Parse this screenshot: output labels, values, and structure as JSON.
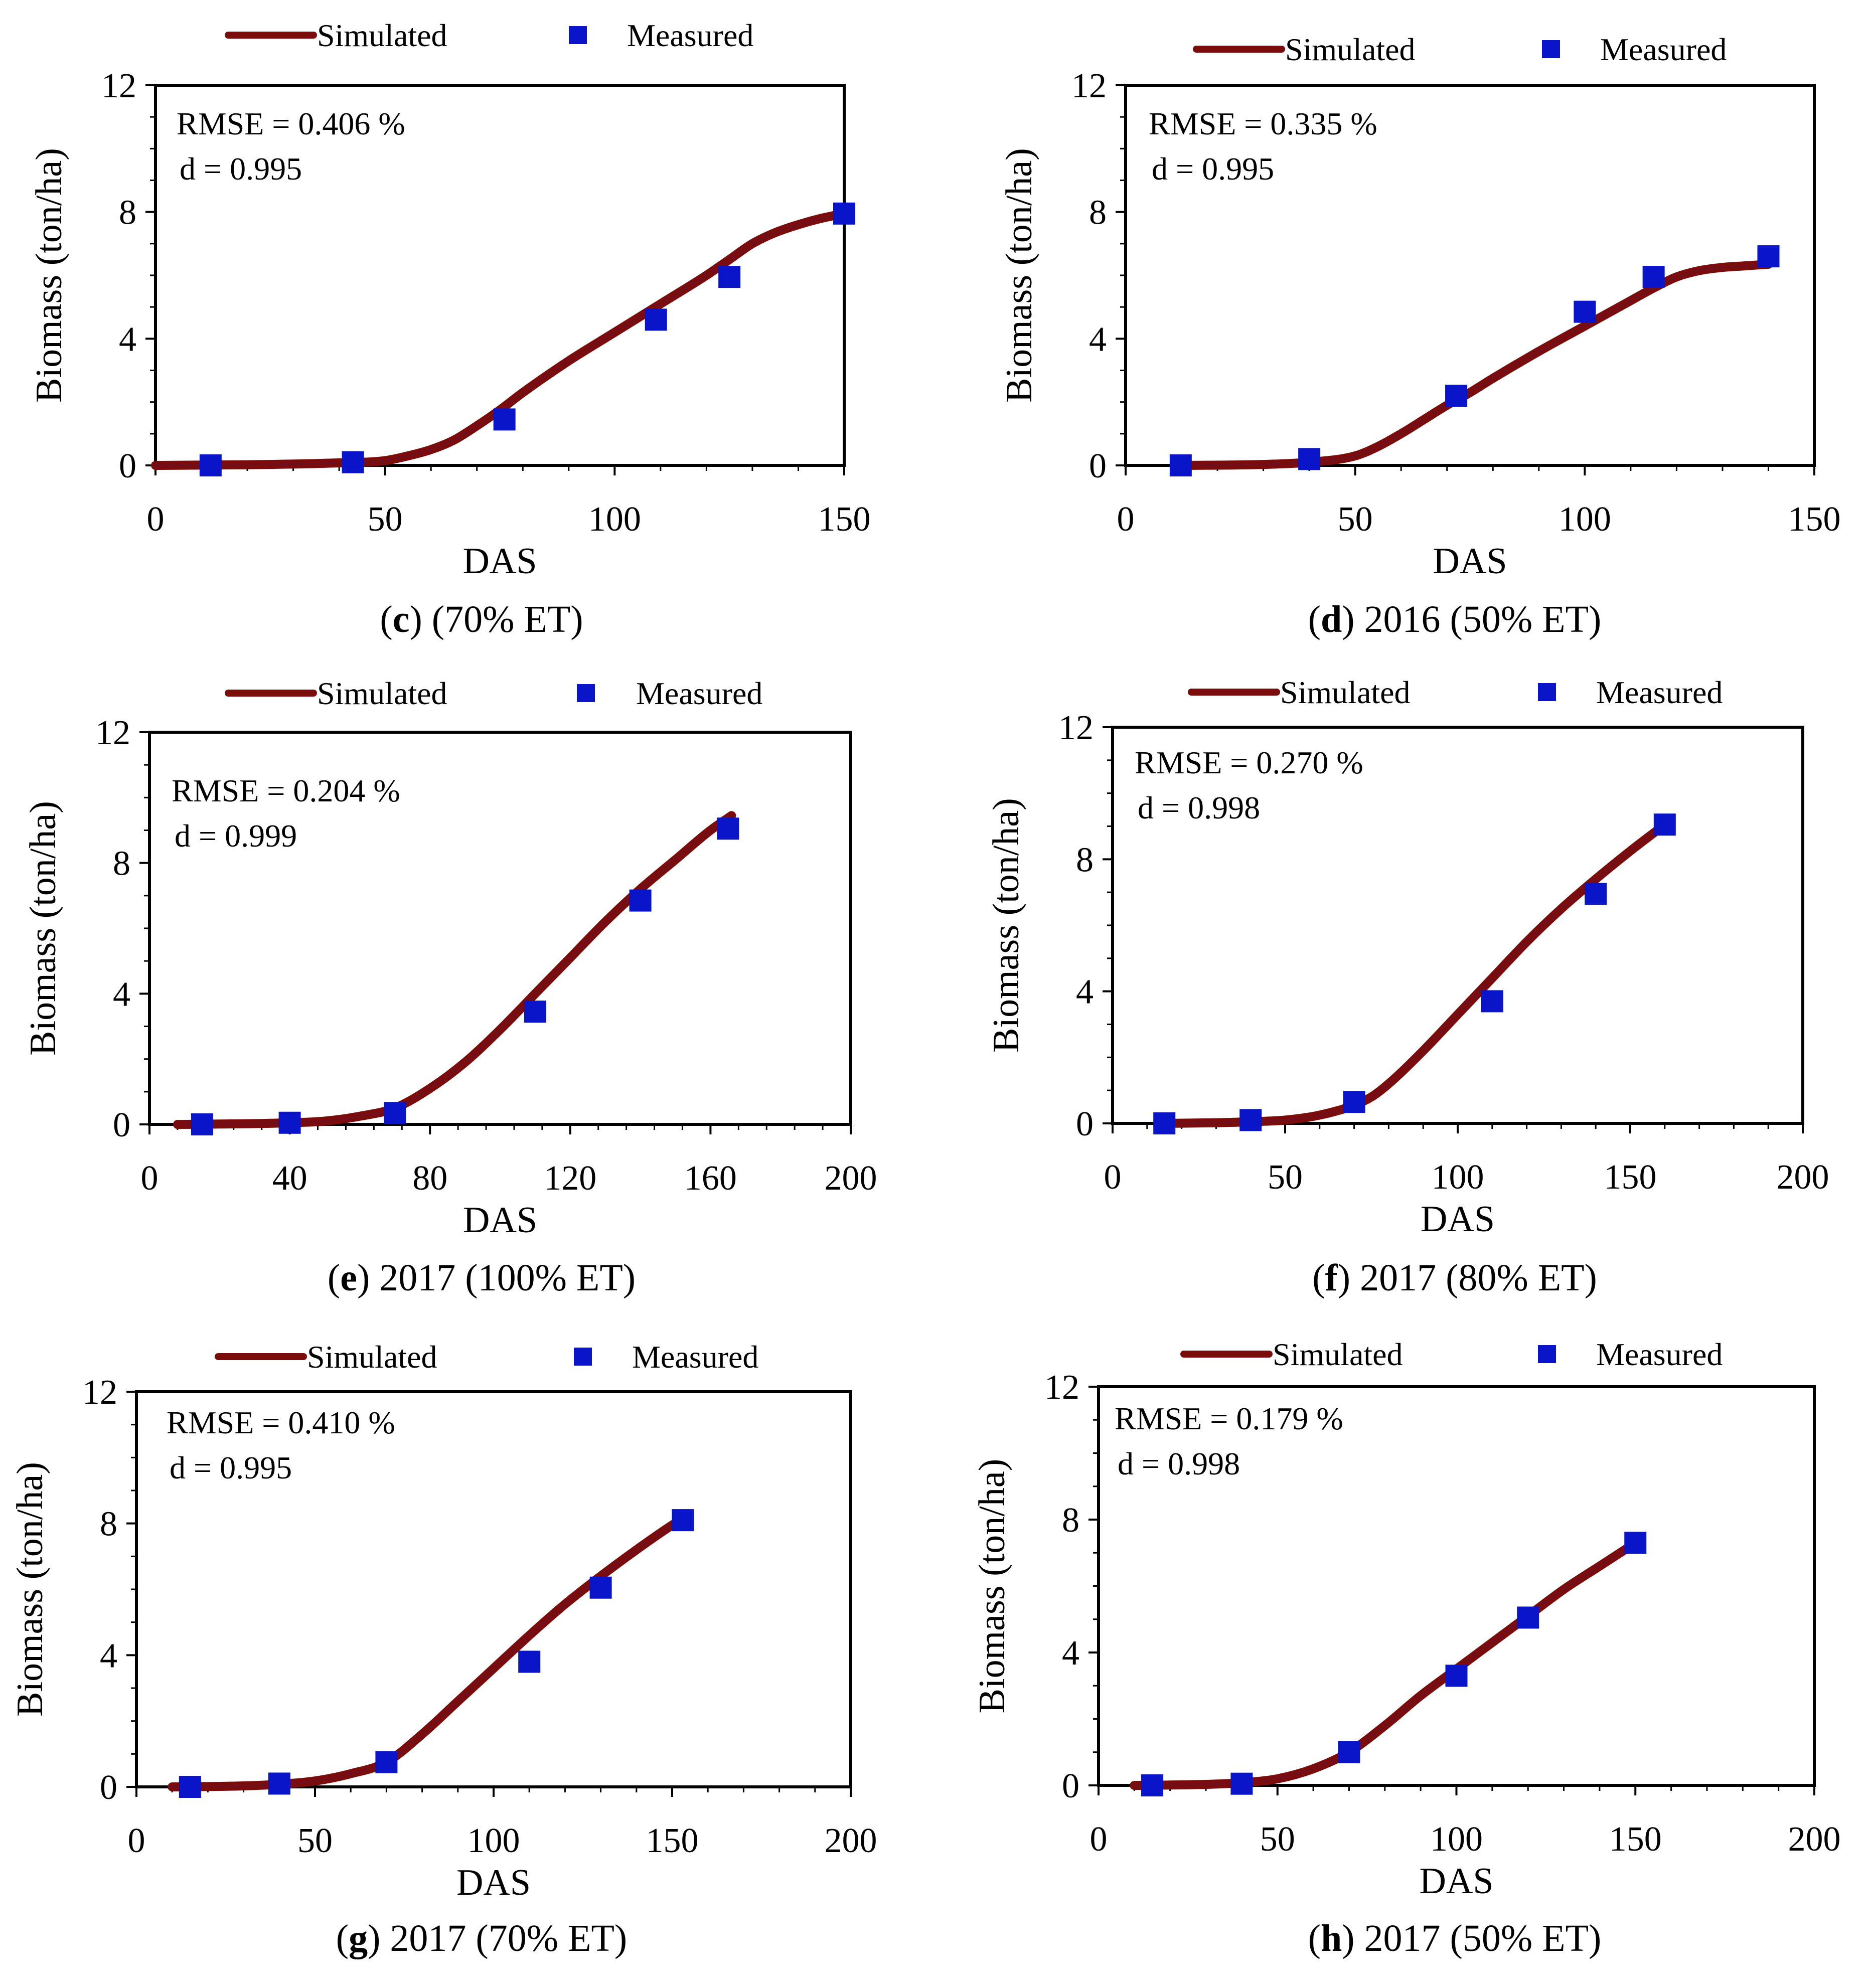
{
  "colors": {
    "simulated": "#7a0c0c",
    "measured": "#0a14c8",
    "axis": "#000000",
    "text": "#000000"
  },
  "chart_data": [
    {
      "type": "line+scatter",
      "panel_letter": "c",
      "caption": " (70% ET)",
      "xlabel": "DAS",
      "ylabel": "Biomass (ton/ha)",
      "xlim": [
        0,
        150
      ],
      "ylim": [
        0,
        12
      ],
      "xticks": [
        0,
        50,
        100,
        150
      ],
      "yticks": [
        0,
        4,
        8,
        12
      ],
      "legend": {
        "simulated": "Simulated",
        "measured": "Measured",
        "placement": "top"
      },
      "stats": [
        "RMSE = 0.406 %",
        "d = 0.995"
      ],
      "simulated": {
        "x": [
          0,
          20,
          40,
          50,
          55,
          60,
          65,
          70,
          75,
          80,
          90,
          100,
          110,
          120,
          125,
          130,
          135,
          140,
          145,
          150
        ],
        "y": [
          0,
          0.02,
          0.08,
          0.15,
          0.3,
          0.5,
          0.8,
          1.25,
          1.75,
          2.3,
          3.3,
          4.2,
          5.1,
          6.0,
          6.5,
          7.0,
          7.35,
          7.6,
          7.8,
          7.95
        ]
      },
      "measured": {
        "x": [
          12,
          43,
          76,
          109,
          125,
          150
        ],
        "y": [
          0.0,
          0.1,
          1.45,
          4.6,
          5.95,
          7.95
        ]
      }
    },
    {
      "type": "line+scatter",
      "panel_letter": "d",
      "caption": " 2016 (50% ET)",
      "xlabel": "DAS",
      "ylabel": "Biomass (ton/ha)",
      "xlim": [
        0,
        150
      ],
      "ylim": [
        0,
        12
      ],
      "xticks": [
        0,
        50,
        100,
        150
      ],
      "yticks": [
        0,
        4,
        8,
        12
      ],
      "legend": {
        "simulated": "Simulated",
        "measured": "Measured",
        "placement": "top"
      },
      "stats": [
        "RMSE = 0.335 %",
        "d = 0.995"
      ],
      "simulated": {
        "x": [
          12,
          30,
          40,
          50,
          55,
          60,
          65,
          70,
          75,
          80,
          90,
          100,
          110,
          115,
          120,
          125,
          130,
          135,
          140
        ],
        "y": [
          0,
          0.03,
          0.1,
          0.3,
          0.6,
          1.0,
          1.45,
          1.9,
          2.3,
          2.75,
          3.6,
          4.4,
          5.2,
          5.6,
          5.95,
          6.15,
          6.25,
          6.3,
          6.35
        ]
      },
      "measured": {
        "x": [
          12,
          40,
          72,
          100,
          115,
          140
        ],
        "y": [
          0.0,
          0.2,
          2.2,
          4.85,
          5.95,
          6.6
        ]
      }
    },
    {
      "type": "line+scatter",
      "panel_letter": "e",
      "caption": " 2017 (100% ET)",
      "xlabel": "DAS",
      "ylabel": "Biomass (ton/ha)",
      "xlim": [
        0,
        200
      ],
      "ylim": [
        0,
        12
      ],
      "xticks": [
        0,
        40,
        80,
        120,
        160,
        200
      ],
      "yticks": [
        0,
        4,
        8,
        12
      ],
      "legend": {
        "simulated": "Simulated",
        "measured": "Measured",
        "placement": "top"
      },
      "stats": [
        "RMSE = 0.204 %",
        "d = 0.999"
      ],
      "simulated": {
        "x": [
          8,
          20,
          40,
          50,
          60,
          70,
          80,
          90,
          100,
          110,
          120,
          130,
          140,
          150,
          160,
          166
        ],
        "y": [
          0,
          0.01,
          0.05,
          0.1,
          0.25,
          0.5,
          1.1,
          1.9,
          2.9,
          4.0,
          5.1,
          6.2,
          7.2,
          8.1,
          9.0,
          9.45
        ]
      },
      "measured": {
        "x": [
          15,
          40,
          70,
          110,
          140,
          165
        ],
        "y": [
          0.0,
          0.05,
          0.35,
          3.45,
          6.85,
          9.05
        ]
      }
    },
    {
      "type": "line+scatter",
      "panel_letter": "f",
      "caption": " 2017 (80% ET)",
      "xlabel": "DAS",
      "ylabel": "Biomass (ton/ha)",
      "xlim": [
        0,
        200
      ],
      "ylim": [
        0,
        12
      ],
      "xticks": [
        0,
        50,
        100,
        150,
        200
      ],
      "yticks": [
        0,
        4,
        8,
        12
      ],
      "legend": {
        "simulated": "Simulated",
        "measured": "Measured",
        "placement": "top"
      },
      "stats": [
        "RMSE = 0.270 %",
        "d = 0.998"
      ],
      "simulated": {
        "x": [
          15,
          30,
          40,
          50,
          60,
          70,
          75,
          80,
          90,
          100,
          110,
          120,
          130,
          140,
          150,
          160
        ],
        "y": [
          0,
          0.02,
          0.05,
          0.1,
          0.25,
          0.55,
          0.8,
          1.2,
          2.2,
          3.3,
          4.4,
          5.5,
          6.5,
          7.4,
          8.25,
          9.05
        ]
      },
      "measured": {
        "x": [
          15,
          40,
          70,
          110,
          140,
          160
        ],
        "y": [
          0.0,
          0.1,
          0.65,
          3.7,
          6.95,
          9.05
        ]
      }
    },
    {
      "type": "line+scatter",
      "panel_letter": "g",
      "caption": " 2017 (70% ET)",
      "xlabel": "DAS",
      "ylabel": "Biomass (ton/ha)",
      "xlim": [
        0,
        200
      ],
      "ylim": [
        0,
        12
      ],
      "xticks": [
        0,
        50,
        100,
        150,
        200
      ],
      "yticks": [
        0,
        4,
        8,
        12
      ],
      "legend": {
        "simulated": "Simulated",
        "measured": "Measured",
        "placement": "top"
      },
      "stats": [
        "RMSE = 0.410 %",
        "d = 0.995"
      ],
      "simulated": {
        "x": [
          10,
          30,
          40,
          50,
          60,
          70,
          80,
          90,
          100,
          110,
          120,
          130,
          140,
          150,
          153
        ],
        "y": [
          0,
          0.03,
          0.08,
          0.18,
          0.4,
          0.75,
          1.6,
          2.6,
          3.6,
          4.6,
          5.55,
          6.4,
          7.2,
          7.95,
          8.15
        ]
      },
      "measured": {
        "x": [
          15,
          40,
          70,
          110,
          130,
          153
        ],
        "y": [
          0.0,
          0.1,
          0.75,
          3.8,
          6.05,
          8.1
        ]
      }
    },
    {
      "type": "line+scatter",
      "panel_letter": "h",
      "caption": " 2017 (50% ET)",
      "xlabel": "DAS",
      "ylabel": "Biomass (ton/ha)",
      "xlim": [
        0,
        200
      ],
      "ylim": [
        0,
        12
      ],
      "xticks": [
        0,
        50,
        100,
        150,
        200
      ],
      "yticks": [
        0,
        4,
        8,
        12
      ],
      "legend": {
        "simulated": "Simulated",
        "measured": "Measured",
        "placement": "top"
      },
      "stats": [
        "RMSE = 0.179 %",
        "d = 0.998"
      ],
      "simulated": {
        "x": [
          10,
          30,
          40,
          50,
          60,
          70,
          80,
          90,
          100,
          110,
          120,
          130,
          140,
          150
        ],
        "y": [
          0,
          0.03,
          0.08,
          0.2,
          0.5,
          1.0,
          1.8,
          2.7,
          3.5,
          4.3,
          5.1,
          5.9,
          6.6,
          7.3
        ]
      },
      "measured": {
        "x": [
          15,
          40,
          70,
          100,
          120,
          150
        ],
        "y": [
          0.0,
          0.05,
          1.0,
          3.3,
          5.05,
          7.3
        ]
      }
    }
  ]
}
